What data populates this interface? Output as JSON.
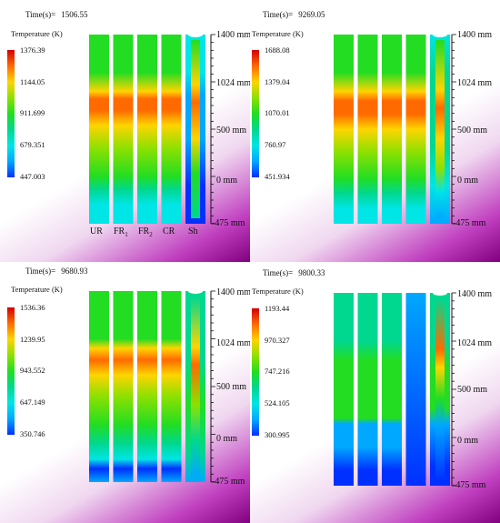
{
  "panels": [
    {
      "id": "p1",
      "time_label": "Time(s)=",
      "time_value": "1506.55",
      "legend_title": "Temperature (K)",
      "colorbar": [
        "1376.39",
        "1144.05",
        "911.699",
        "679.351",
        "447.003"
      ],
      "axis": [
        "1400 mm",
        "1024 mm",
        "500 mm",
        "0 mm",
        "-475 mm"
      ],
      "rod_labels": [
        {
          "base": "UR",
          "sub": ""
        },
        {
          "base": "FR",
          "sub": "1"
        },
        {
          "base": "FR",
          "sub": "2"
        },
        {
          "base": "CR",
          "sub": ""
        },
        {
          "base": "Sh",
          "sub": ""
        }
      ]
    },
    {
      "id": "p2",
      "time_label": "Time(s)=",
      "time_value": "9269.05",
      "legend_title": "Temperature (K)",
      "colorbar": [
        "1688.08",
        "1379.04",
        "1070.01",
        "760.97",
        "451.934"
      ],
      "axis": [
        "1400 mm",
        "1024 mm",
        "500 mm",
        "0 mm",
        "-475 mm"
      ],
      "rod_labels": []
    },
    {
      "id": "p3",
      "time_label": "Time(s)=",
      "time_value": "9680.93",
      "legend_title": "Temperature (K)",
      "colorbar": [
        "1536.36",
        "1239.95",
        "943.552",
        "647.149",
        "350.746"
      ],
      "axis": [
        "1400 mm",
        "1024 mm",
        "500 mm",
        "0 mm",
        "-475 mm"
      ],
      "rod_labels": []
    },
    {
      "id": "p4",
      "time_label": "Time(s)=",
      "time_value": "9800.33",
      "legend_title": "Temperature (K)",
      "colorbar": [
        "1193.44",
        "970.327",
        "747.216",
        "524.105",
        "300.995"
      ],
      "axis": [
        "1400 mm",
        "1024 mm",
        "500 mm",
        "0 mm",
        "-475 mm"
      ],
      "rod_labels": []
    }
  ],
  "colors": {
    "colormap": [
      "#d40000",
      "#ff6a00",
      "#ffd400",
      "#8ee000",
      "#22dd22",
      "#00d890",
      "#00e5e5",
      "#00a8ff",
      "#0030ff"
    ],
    "corner_gradient": [
      "#ffffff",
      "#f0d8f0",
      "#c040c0",
      "#800080"
    ],
    "axis_line": "#111111"
  }
}
